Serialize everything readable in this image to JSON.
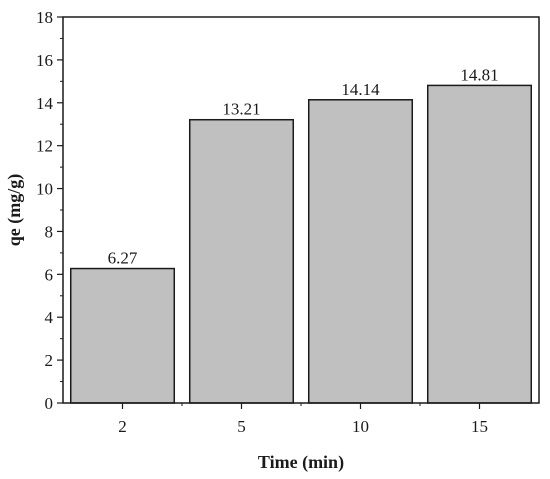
{
  "chart_data": {
    "type": "bar",
    "categories": [
      "2",
      "5",
      "10",
      "15"
    ],
    "values": [
      6.27,
      13.21,
      14.14,
      14.81
    ],
    "data_labels": [
      "6.27",
      "13.21",
      "14.14",
      "14.81"
    ],
    "xlabel": "Time (min)",
    "ylabel": "qe (mg/g)",
    "ylim": [
      0,
      18
    ],
    "yticks": [
      0,
      2,
      4,
      6,
      8,
      10,
      12,
      14,
      16,
      18
    ],
    "ytick_labels": [
      "0",
      "2",
      "4",
      "6",
      "8",
      "10",
      "12",
      "14",
      "16",
      "18"
    ],
    "grid": false,
    "legend": "none",
    "bar_color": "#c0c0c0",
    "bar_edge_color": "#1a1a1a"
  }
}
